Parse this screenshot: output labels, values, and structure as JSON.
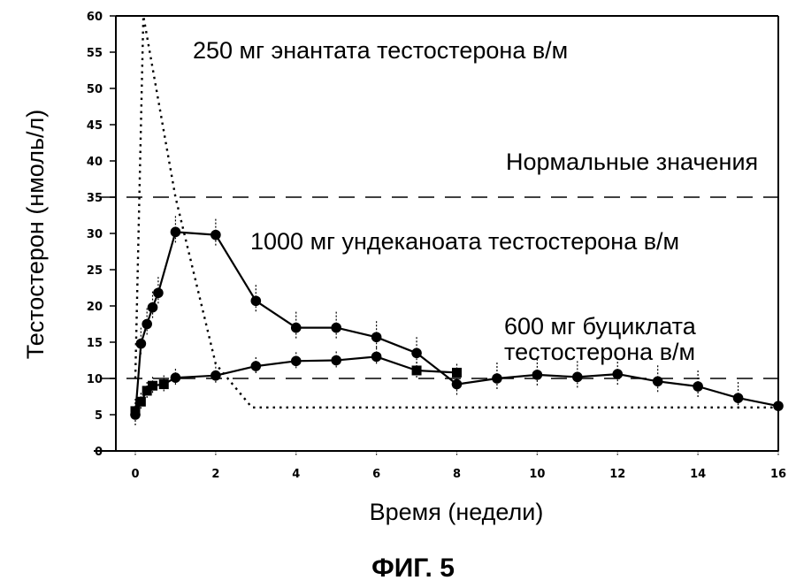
{
  "figure": {
    "caption": "ФИГ. 5"
  },
  "chart_data": {
    "type": "line",
    "title": "",
    "xlabel": "Время (недели)",
    "ylabel": "Тестостерон (нмоль/л)",
    "xlim": [
      0,
      16
    ],
    "ylim": [
      0,
      60
    ],
    "xticks": [
      0,
      2,
      4,
      6,
      8,
      10,
      12,
      14,
      16
    ],
    "yticks": [
      0,
      5,
      10,
      15,
      20,
      25,
      30,
      35,
      40,
      45,
      50,
      55,
      60
    ],
    "grid": false,
    "reference_lines": [
      {
        "y": 35,
        "style": "dashed",
        "label": "Нормальные значения"
      },
      {
        "y": 10,
        "style": "dashed",
        "label": ""
      }
    ],
    "series": [
      {
        "name": "250 мг энантата тестостерона в/м",
        "style": "dotted",
        "marker": "none",
        "x": [
          0,
          0.2,
          1.0,
          2.0,
          2.9,
          4,
          8,
          12,
          16
        ],
        "y": [
          10,
          60,
          35,
          12,
          6,
          6,
          6,
          6,
          6
        ]
      },
      {
        "name": "1000 мг ундеканоата тестостерона в/м",
        "style": "solid",
        "marker": "circle",
        "x": [
          0,
          0.14,
          0.29,
          0.43,
          0.57,
          1,
          2,
          3,
          4,
          5,
          6,
          7,
          8,
          9,
          10,
          11,
          12,
          13,
          14,
          15,
          16
        ],
        "y": [
          5,
          14.8,
          17.5,
          19.8,
          21.8,
          30.2,
          29.8,
          20.7,
          17,
          17,
          15.7,
          13.5,
          9.2,
          10,
          10.5,
          10.2,
          10.6,
          9.6,
          8.9,
          7.3,
          6.2
        ]
      },
      {
        "name": "600 мг буциклата тестостерона в/м",
        "style": "solid",
        "marker": "square",
        "x": [
          0,
          0.14,
          0.29,
          0.43,
          0.71,
          1,
          2,
          3,
          4,
          5,
          6,
          7,
          8
        ],
        "y": [
          5.5,
          6.8,
          8.3,
          9,
          9.2,
          10.1,
          10.4,
          11.7,
          12.4,
          12.5,
          13,
          11.1,
          10.8
        ]
      }
    ],
    "annotations": [
      {
        "text": "250 мг энантата тестостерона в/м",
        "x": 2.4,
        "y": 56
      },
      {
        "text": "Нормальные значения",
        "x": 9.2,
        "y": 39
      },
      {
        "text": "1000 мг ундеканоата тестостерона в/м",
        "x": 2.8,
        "y": 28
      },
      {
        "text": "600 мг буциклата тестостерона в/м",
        "x": 9.2,
        "y": 16
      }
    ]
  }
}
